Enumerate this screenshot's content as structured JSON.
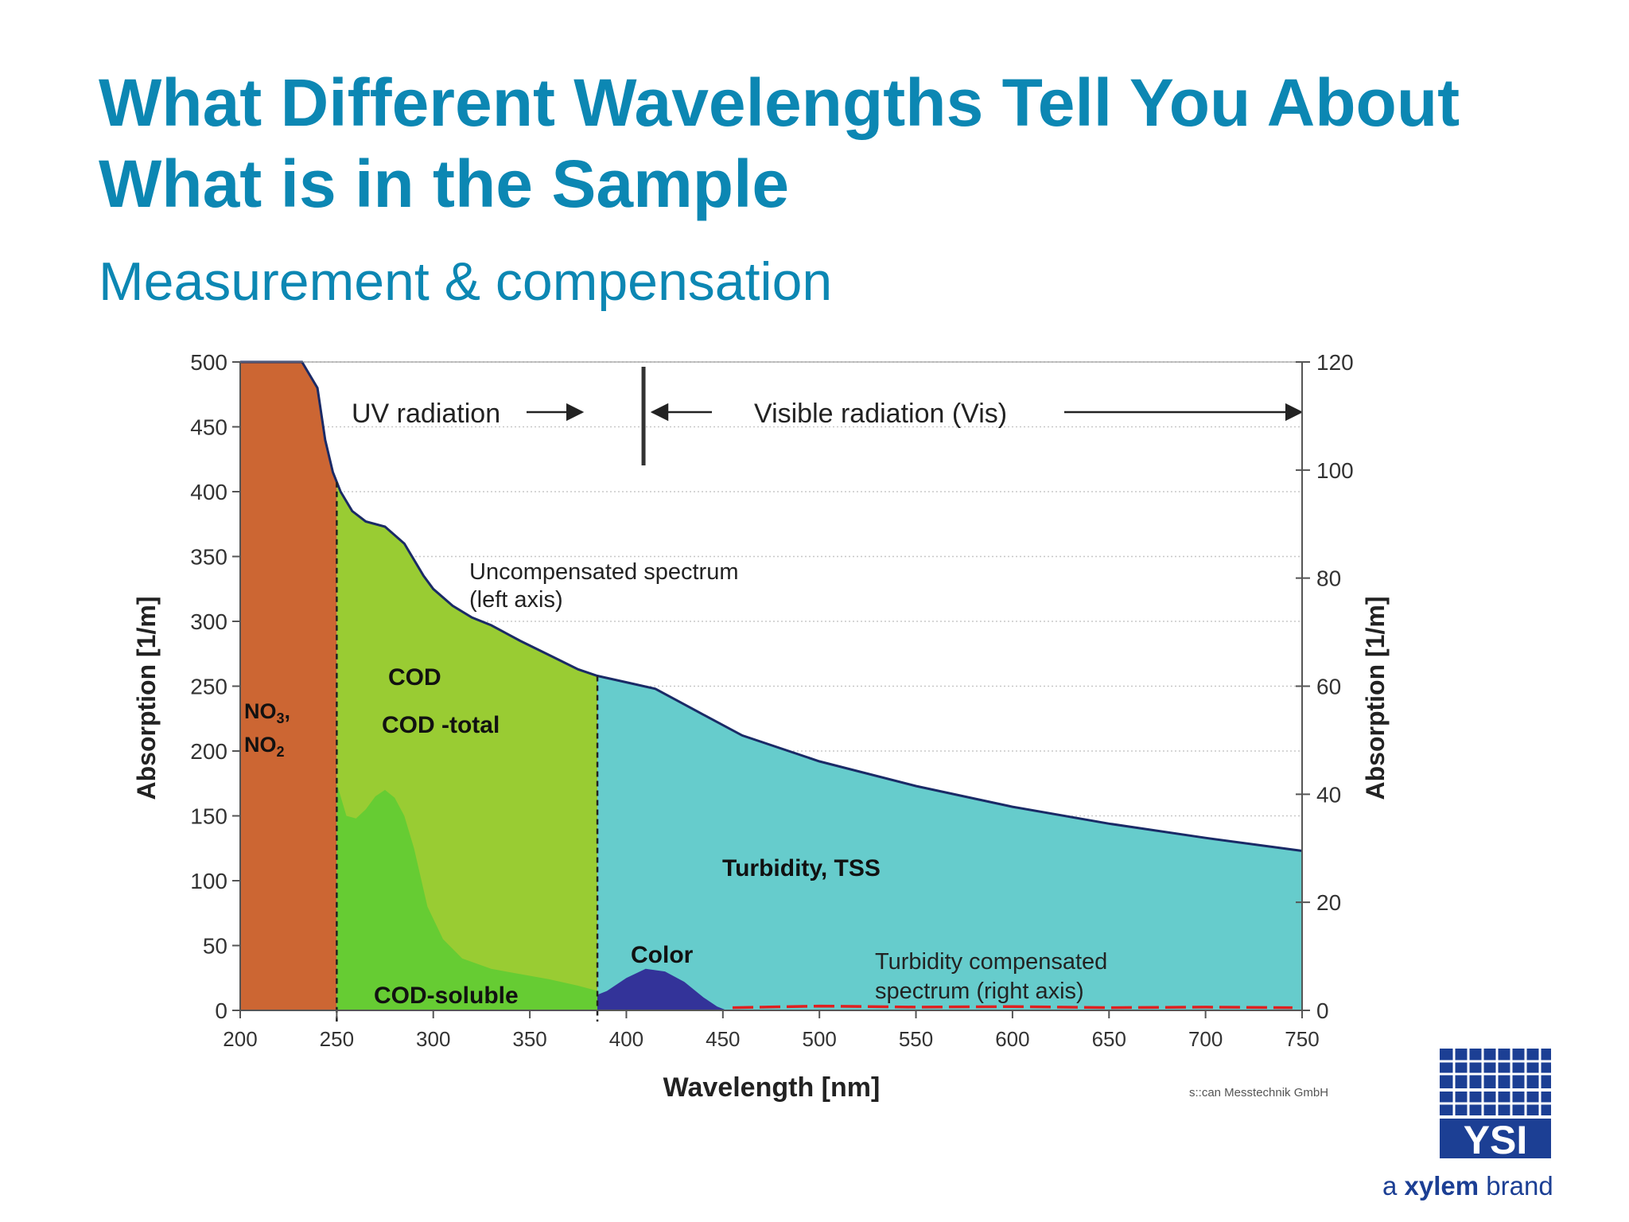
{
  "slide": {
    "title_line1": "What Different Wavelengths Tell You About",
    "title_line2": "What is in the Sample",
    "subtitle": "Measurement & compensation"
  },
  "chart_data": {
    "type": "area",
    "xlabel": "Wavelength [nm]",
    "ylabel_left": "Absorption [1/m]",
    "ylabel_right": "Absorption [1/m]",
    "xlim": [
      200,
      750
    ],
    "ylim_left": [
      0,
      500
    ],
    "ylim_right": [
      0,
      120
    ],
    "x_ticks": [
      200,
      250,
      300,
      350,
      400,
      450,
      500,
      550,
      600,
      650,
      700,
      750
    ],
    "y_ticks_left": [
      0,
      50,
      100,
      150,
      200,
      250,
      300,
      350,
      400,
      450,
      500
    ],
    "y_ticks_right": [
      0,
      20,
      40,
      60,
      80,
      100,
      120
    ],
    "grid": true,
    "dividers_x": [
      250,
      385
    ],
    "uv_vis_boundary_x": 385,
    "uncompensated_spectrum": {
      "x": [
        200,
        232,
        240,
        244,
        248,
        252,
        258,
        265,
        275,
        285,
        295,
        300,
        310,
        320,
        330,
        345,
        360,
        375,
        385,
        400,
        415,
        425,
        440,
        460,
        500,
        550,
        600,
        650,
        700,
        750
      ],
      "y": [
        500,
        500,
        480,
        440,
        415,
        400,
        385,
        377,
        373,
        360,
        335,
        325,
        312,
        303,
        297,
        285,
        274,
        263,
        258,
        253,
        248,
        240,
        228,
        212,
        192,
        173,
        157,
        144,
        133,
        123
      ]
    },
    "cod_soluble": {
      "x": [
        250,
        255,
        260,
        265,
        270,
        275,
        280,
        285,
        290,
        297,
        305,
        315,
        330,
        345,
        360,
        375,
        385
      ],
      "y": [
        175,
        150,
        148,
        155,
        165,
        170,
        164,
        150,
        125,
        80,
        55,
        40,
        32,
        28,
        24,
        19,
        15
      ]
    },
    "color": {
      "x": [
        385,
        390,
        400,
        410,
        420,
        430,
        440,
        447,
        452
      ],
      "y": [
        12,
        15,
        25,
        32,
        30,
        22,
        10,
        3,
        0
      ]
    },
    "compensated_spectrum": {
      "x": [
        455,
        500,
        550,
        600,
        650,
        700,
        745
      ],
      "y": [
        0.5,
        0.8,
        0.6,
        0.7,
        0.5,
        0.6,
        0.5
      ]
    },
    "region_labels": {
      "nitrate": "NO",
      "nitrate_sub": "3",
      "nitrate_suffix": ",",
      "nitrite": "NO",
      "nitrite_sub": "2",
      "cod": "COD",
      "cod_total": "COD -total",
      "cod_soluble": "COD-soluble",
      "turbidity": "Turbidity, TSS",
      "color": "Color"
    },
    "annotations": {
      "uv": "UV radiation",
      "vis": "Visible radiation (Vis)",
      "uncomp_line1": "Uncompensated spectrum",
      "uncomp_line2": "(left axis)",
      "comp_line1": "Turbidity compensated",
      "comp_line2": "spectrum (right axis)",
      "credit": "s::can Messtechnik GmbH"
    },
    "colors": {
      "nitrate_fill": "#cc6633",
      "cod_total_fill": "#99cc33",
      "cod_soluble_fill": "#66cc33",
      "turbidity_fill": "#66cccc",
      "color_fill": "#333399",
      "spectrum_line": "#1a2a66",
      "compensated_line": "#e02020"
    }
  },
  "logo": {
    "text": "YSI",
    "tagline_pre": "a ",
    "tagline_bold": "xylem",
    "tagline_post": " brand",
    "color": "#1c3f94"
  }
}
